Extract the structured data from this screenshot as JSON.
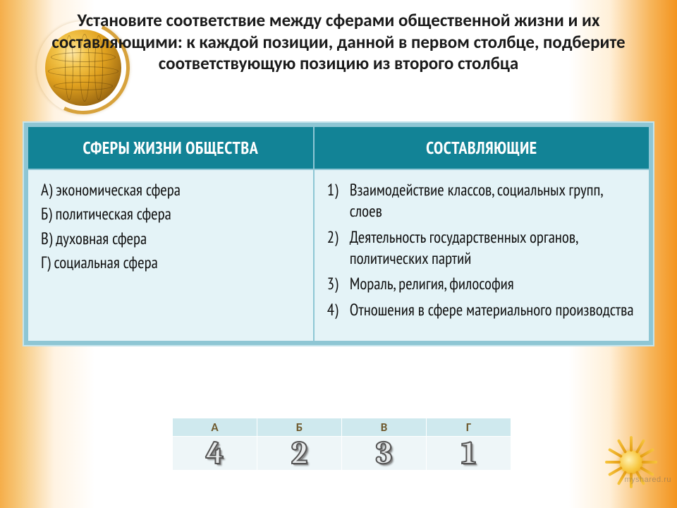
{
  "title": "Установите соответствие между  сферами общественной жизни и их составляющими: к каждой позиции, данной в первом столбце, подберите соответствующую позицию из второго столбца",
  "table": {
    "header_left": "СФЕРЫ ЖИЗНИ ОБЩЕСТВА",
    "header_right": "СОСТАВЛЯЮЩИЕ",
    "left_items": [
      "А) экономическая сфера",
      "Б) политическая сфера",
      "В) духовная сфера",
      "Г) социальная сфера"
    ],
    "right_items": [
      {
        "n": "1)",
        "t": "Взаимодействие классов, социальных групп, слоев"
      },
      {
        "n": "2)",
        "t": "Деятельность государственных органов, политических партий"
      },
      {
        "n": "3)",
        "t": "Мораль, религия, философия"
      },
      {
        "n": "4)",
        "t": "Отношения в сфере материального производства"
      }
    ]
  },
  "answers": {
    "labels": [
      "А",
      "Б",
      "В",
      "Г"
    ],
    "values": [
      "4",
      "2",
      "3",
      "1"
    ]
  },
  "colors": {
    "table_header_bg": "#128396",
    "table_header_fg": "#ffffff",
    "table_cell_bg": "#e4f3f7",
    "table_border": "#8ec6d4",
    "answer_header_bg": "#cfe9ee",
    "answer_cell_bg": "#eef6f8",
    "title_color": "#1a1a1a"
  },
  "watermark": "myshared.ru"
}
